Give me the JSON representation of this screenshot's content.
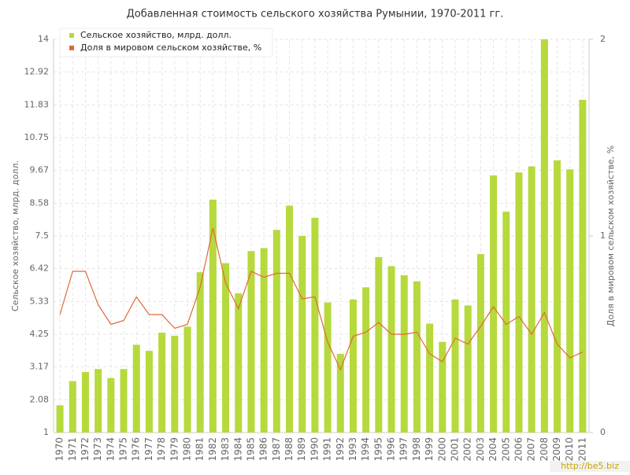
{
  "chart_data": {
    "type": "bar_line",
    "title": "Добавленная стоимость сельского хозяйства Румынии, 1970-2011 гг.",
    "y_label": "Сельское хозяйство, млрд. долл.",
    "y2_label": "Доля в мировом сельском хозяйстве, %",
    "watermark": "http://be5.biz",
    "categories": [
      "1970",
      "1971",
      "1972",
      "1973",
      "1974",
      "1975",
      "1976",
      "1977",
      "1978",
      "1979",
      "1980",
      "1981",
      "1982",
      "1983",
      "1984",
      "1985",
      "1986",
      "1987",
      "1988",
      "1989",
      "1990",
      "1991",
      "1992",
      "1993",
      "1994",
      "1995",
      "1996",
      "1997",
      "1998",
      "1999",
      "2000",
      "2001",
      "2002",
      "2003",
      "2004",
      "2005",
      "2006",
      "2007",
      "2008",
      "2009",
      "2010",
      "2011"
    ],
    "series": [
      {
        "name": "Сельское хозяйство, млрд. долл.",
        "type": "bar",
        "color": "#b6d93c",
        "values": [
          1.9,
          2.7,
          3.0,
          3.1,
          2.8,
          3.1,
          3.9,
          3.7,
          4.3,
          4.2,
          4.5,
          6.3,
          8.7,
          6.6,
          5.6,
          7.0,
          7.1,
          7.7,
          8.5,
          7.5,
          8.1,
          5.3,
          3.6,
          5.4,
          5.8,
          6.8,
          6.5,
          6.2,
          6.0,
          4.6,
          4.0,
          5.4,
          5.2,
          6.9,
          9.5,
          8.3,
          9.6,
          9.8,
          14.0,
          10.0,
          9.7,
          12.0
        ]
      },
      {
        "name": "Доля в мировом сельском хозяйстве, %",
        "type": "line",
        "axis": "y2",
        "color": "#e0693a",
        "values": [
          0.6,
          0.82,
          0.82,
          0.65,
          0.55,
          0.57,
          0.69,
          0.6,
          0.6,
          0.53,
          0.55,
          0.74,
          1.04,
          0.76,
          0.63,
          0.82,
          0.79,
          0.81,
          0.81,
          0.68,
          0.69,
          0.46,
          0.32,
          0.49,
          0.51,
          0.56,
          0.5,
          0.5,
          0.51,
          0.4,
          0.36,
          0.48,
          0.45,
          0.54,
          0.64,
          0.55,
          0.59,
          0.5,
          0.61,
          0.45,
          0.38,
          0.41
        ]
      }
    ],
    "ylim": [
      1,
      14
    ],
    "yticks": [
      1,
      2.08,
      3.17,
      4.25,
      5.33,
      6.42,
      7.5,
      8.58,
      9.67,
      10.75,
      11.83,
      12.92,
      14
    ],
    "y2lim": [
      0,
      2
    ],
    "y2ticks": [
      0,
      1,
      2
    ],
    "grid": true,
    "legend": "top-left"
  }
}
